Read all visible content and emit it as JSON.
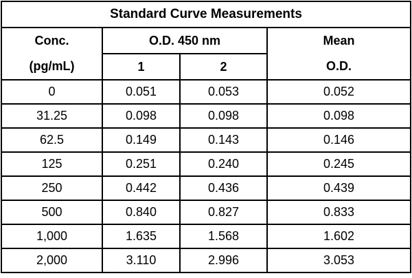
{
  "table": {
    "title": "Standard Curve Measurements",
    "headers": {
      "conc_top": "Conc.",
      "conc_bottom": "(pg/mL)",
      "od_group": "O.D. 450 nm",
      "od_rep1": "1",
      "od_rep2": "2",
      "mean_top": "Mean",
      "mean_bottom": "O.D."
    },
    "rows": [
      {
        "conc": "0",
        "od1": "0.051",
        "od2": "0.053",
        "mean": "0.052"
      },
      {
        "conc": "31.25",
        "od1": "0.098",
        "od2": "0.098",
        "mean": "0.098"
      },
      {
        "conc": "62.5",
        "od1": "0.149",
        "od2": "0.143",
        "mean": "0.146"
      },
      {
        "conc": "125",
        "od1": "0.251",
        "od2": "0.240",
        "mean": "0.245"
      },
      {
        "conc": "250",
        "od1": "0.442",
        "od2": "0.436",
        "mean": "0.439"
      },
      {
        "conc": "500",
        "od1": "0.840",
        "od2": "0.827",
        "mean": "0.833"
      },
      {
        "conc": "1,000",
        "od1": "1.635",
        "od2": "1.568",
        "mean": "1.602"
      },
      {
        "conc": "2,000",
        "od1": "3.110",
        "od2": "2.996",
        "mean": "3.053"
      }
    ]
  }
}
